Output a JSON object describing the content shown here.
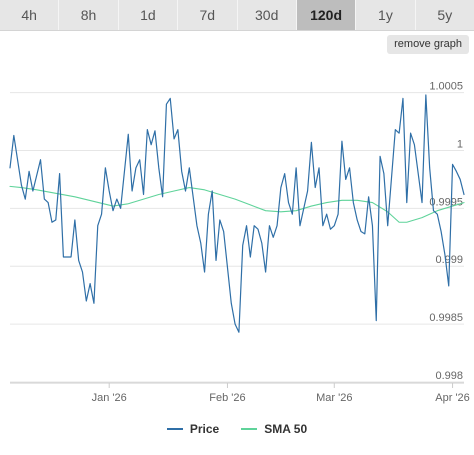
{
  "range_tabs": [
    {
      "label": "4h",
      "active": false
    },
    {
      "label": "8h",
      "active": false
    },
    {
      "label": "1d",
      "active": false
    },
    {
      "label": "7d",
      "active": false
    },
    {
      "label": "30d",
      "active": false
    },
    {
      "label": "120d",
      "active": true
    },
    {
      "label": "1y",
      "active": false
    },
    {
      "label": "5y",
      "active": false
    }
  ],
  "remove_graph_label": "remove graph",
  "chart_data": {
    "type": "line",
    "x_start": "2025-12-06",
    "x_end": "2026-04-04",
    "x_ticks": [
      {
        "date": "2026-01-01",
        "label": "Jan '26"
      },
      {
        "date": "2026-02-01",
        "label": "Feb '26"
      },
      {
        "date": "2026-03-01",
        "label": "Mar '26"
      },
      {
        "date": "2026-04-01",
        "label": "Apr '26"
      }
    ],
    "y_ticks": [
      0.998,
      0.9985,
      0.999,
      0.9995,
      1,
      1.0005
    ],
    "y_tick_labels": [
      "0.998",
      "0.9985",
      "0.999",
      "0.9995",
      "1",
      "1.0005"
    ],
    "ylim": [
      0.998,
      1.00073
    ],
    "grid": true,
    "legend_position": "bottom",
    "colors": {
      "price": "#2f6fa7",
      "sma": "#5fd39a",
      "grid": "#e6e6e6",
      "axis": "#cccccc",
      "tick_text": "#666666"
    },
    "series": [
      {
        "name": "Price",
        "color": "#2f6fa7",
        "points": [
          [
            "2025-12-06",
            0.99985
          ],
          [
            "2025-12-07",
            1.00013
          ],
          [
            "2025-12-09",
            0.9997
          ],
          [
            "2025-12-10",
            0.99958
          ],
          [
            "2025-12-11",
            0.99982
          ],
          [
            "2025-12-12",
            0.99965
          ],
          [
            "2025-12-14",
            0.99992
          ],
          [
            "2025-12-15",
            0.99958
          ],
          [
            "2025-12-16",
            0.99955
          ],
          [
            "2025-12-17",
            0.99938
          ],
          [
            "2025-12-18",
            0.9994
          ],
          [
            "2025-12-19",
            0.9998
          ],
          [
            "2025-12-20",
            0.99908
          ],
          [
            "2025-12-22",
            0.99908
          ],
          [
            "2025-12-23",
            0.9994
          ],
          [
            "2025-12-24",
            0.99905
          ],
          [
            "2025-12-25",
            0.99895
          ],
          [
            "2025-12-26",
            0.9987
          ],
          [
            "2025-12-27",
            0.99885
          ],
          [
            "2025-12-28",
            0.99868
          ],
          [
            "2025-12-29",
            0.99935
          ],
          [
            "2025-12-30",
            0.99945
          ],
          [
            "2025-12-31",
            0.99985
          ],
          [
            "2026-01-01",
            0.99965
          ],
          [
            "2026-01-02",
            0.99948
          ],
          [
            "2026-01-03",
            0.99958
          ],
          [
            "2026-01-04",
            0.9995
          ],
          [
            "2026-01-06",
            1.00014
          ],
          [
            "2026-01-07",
            0.99965
          ],
          [
            "2026-01-08",
            0.99985
          ],
          [
            "2026-01-09",
            0.99992
          ],
          [
            "2026-01-10",
            0.99962
          ],
          [
            "2026-01-11",
            1.00018
          ],
          [
            "2026-01-12",
            1.00005
          ],
          [
            "2026-01-13",
            1.00017
          ],
          [
            "2026-01-14",
            0.99985
          ],
          [
            "2026-01-15",
            0.9996
          ],
          [
            "2026-01-16",
            1.0004
          ],
          [
            "2026-01-17",
            1.00045
          ],
          [
            "2026-01-18",
            1.0001
          ],
          [
            "2026-01-19",
            1.00018
          ],
          [
            "2026-01-20",
            0.99982
          ],
          [
            "2026-01-21",
            0.99965
          ],
          [
            "2026-01-22",
            0.99985
          ],
          [
            "2026-01-23",
            0.9996
          ],
          [
            "2026-01-24",
            0.99935
          ],
          [
            "2026-01-25",
            0.9992
          ],
          [
            "2026-01-26",
            0.99895
          ],
          [
            "2026-01-27",
            0.99945
          ],
          [
            "2026-01-28",
            0.99965
          ],
          [
            "2026-01-29",
            0.99905
          ],
          [
            "2026-01-30",
            0.9994
          ],
          [
            "2026-01-31",
            0.9993
          ],
          [
            "2026-02-02",
            0.99868
          ],
          [
            "2026-02-03",
            0.9985
          ],
          [
            "2026-02-04",
            0.99843
          ],
          [
            "2026-02-05",
            0.99918
          ],
          [
            "2026-02-06",
            0.99935
          ],
          [
            "2026-02-07",
            0.99908
          ],
          [
            "2026-02-08",
            0.99935
          ],
          [
            "2026-02-09",
            0.99932
          ],
          [
            "2026-02-10",
            0.9992
          ],
          [
            "2026-02-11",
            0.99895
          ],
          [
            "2026-02-12",
            0.99935
          ],
          [
            "2026-02-13",
            0.99925
          ],
          [
            "2026-02-14",
            0.99935
          ],
          [
            "2026-02-15",
            0.99968
          ],
          [
            "2026-02-16",
            0.9998
          ],
          [
            "2026-02-17",
            0.99955
          ],
          [
            "2026-02-18",
            0.99945
          ],
          [
            "2026-02-19",
            0.99985
          ],
          [
            "2026-02-20",
            0.99935
          ],
          [
            "2026-02-22",
            0.99965
          ],
          [
            "2026-02-23",
            1.00007
          ],
          [
            "2026-02-24",
            0.99968
          ],
          [
            "2026-02-25",
            0.99985
          ],
          [
            "2026-02-26",
            0.99935
          ],
          [
            "2026-02-27",
            0.99945
          ],
          [
            "2026-02-28",
            0.99932
          ],
          [
            "2026-03-01",
            0.99935
          ],
          [
            "2026-03-02",
            0.99945
          ],
          [
            "2026-03-03",
            1.00008
          ],
          [
            "2026-03-04",
            0.99975
          ],
          [
            "2026-03-05",
            0.99985
          ],
          [
            "2026-03-06",
            0.99955
          ],
          [
            "2026-03-07",
            0.9994
          ],
          [
            "2026-03-08",
            0.9993
          ],
          [
            "2026-03-09",
            0.99928
          ],
          [
            "2026-03-10",
            0.9996
          ],
          [
            "2026-03-11",
            0.99935
          ],
          [
            "2026-03-12",
            0.99853
          ],
          [
            "2026-03-13",
            0.99995
          ],
          [
            "2026-03-14",
            0.9998
          ],
          [
            "2026-03-15",
            0.99935
          ],
          [
            "2026-03-17",
            1.00018
          ],
          [
            "2026-03-18",
            1.00015
          ],
          [
            "2026-03-19",
            1.00045
          ],
          [
            "2026-03-20",
            0.99955
          ],
          [
            "2026-03-21",
            1.00015
          ],
          [
            "2026-03-22",
            1.00005
          ],
          [
            "2026-03-24",
            0.99955
          ],
          [
            "2026-03-25",
            1.00048
          ],
          [
            "2026-03-26",
            0.99985
          ],
          [
            "2026-03-27",
            0.99948
          ],
          [
            "2026-03-28",
            0.99945
          ],
          [
            "2026-03-29",
            0.9993
          ],
          [
            "2026-03-30",
            0.9991
          ],
          [
            "2026-03-31",
            0.99883
          ],
          [
            "2026-04-01",
            0.99988
          ],
          [
            "2026-04-02",
            0.99982
          ],
          [
            "2026-04-03",
            0.99975
          ],
          [
            "2026-04-04",
            0.99962
          ]
        ]
      },
      {
        "name": "SMA 50",
        "color": "#5fd39a",
        "points": [
          [
            "2025-12-06",
            0.99969
          ],
          [
            "2025-12-09",
            0.99968
          ],
          [
            "2025-12-13",
            0.99966
          ],
          [
            "2025-12-18",
            0.99963
          ],
          [
            "2025-12-23",
            0.9996
          ],
          [
            "2025-12-28",
            0.99956
          ],
          [
            "2026-01-02",
            0.99952
          ],
          [
            "2026-01-06",
            0.99954
          ],
          [
            "2026-01-10",
            0.99958
          ],
          [
            "2026-01-14",
            0.99962
          ],
          [
            "2026-01-18",
            0.99965
          ],
          [
            "2026-01-22",
            0.99968
          ],
          [
            "2026-01-26",
            0.99966
          ],
          [
            "2026-01-30",
            0.99962
          ],
          [
            "2026-02-03",
            0.99958
          ],
          [
            "2026-02-07",
            0.99953
          ],
          [
            "2026-02-11",
            0.99948
          ],
          [
            "2026-02-15",
            0.99947
          ],
          [
            "2026-02-19",
            0.99948
          ],
          [
            "2026-02-23",
            0.99952
          ],
          [
            "2026-02-27",
            0.99955
          ],
          [
            "2026-03-03",
            0.99957
          ],
          [
            "2026-03-07",
            0.99957
          ],
          [
            "2026-03-11",
            0.99955
          ],
          [
            "2026-03-15",
            0.99947
          ],
          [
            "2026-03-18",
            0.99938
          ],
          [
            "2026-03-20",
            0.99938
          ],
          [
            "2026-03-24",
            0.99942
          ],
          [
            "2026-03-28",
            0.99948
          ],
          [
            "2026-04-01",
            0.99952
          ],
          [
            "2026-04-04",
            0.99955
          ]
        ]
      }
    ]
  }
}
